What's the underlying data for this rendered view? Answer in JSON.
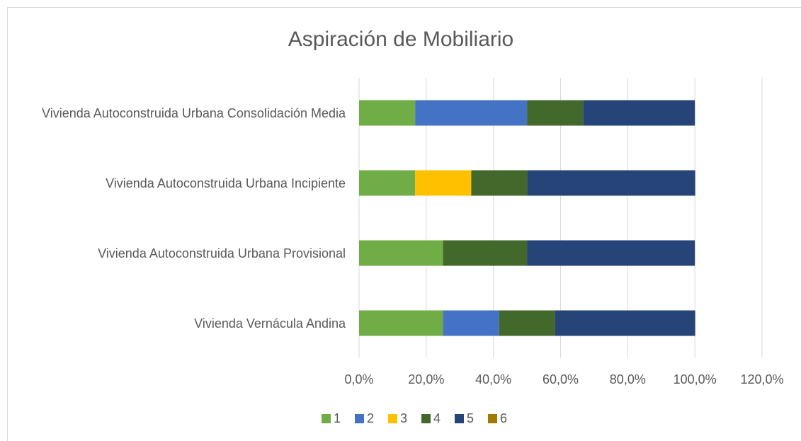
{
  "chart_data": {
    "type": "bar",
    "orientation": "horizontal",
    "stacked": true,
    "title": "Aspiración de Mobiliario",
    "categories": [
      "Vivienda Autoconstruida Urbana Consolidación Media",
      "Vivienda Autoconstruida Urbana Incipiente",
      "Vivienda Autoconstruida Urbana Provisional",
      "Vivienda Vernácula Andina"
    ],
    "series": [
      {
        "name": "1",
        "color": "#70ad47",
        "values": [
          16.7,
          16.7,
          25,
          25
        ]
      },
      {
        "name": "2",
        "color": "#4472c4",
        "values": [
          33.3,
          0,
          0,
          16.7
        ]
      },
      {
        "name": "3",
        "color": "#ffc000",
        "values": [
          0,
          16.7,
          0,
          0
        ]
      },
      {
        "name": "4",
        "color": "#43682b",
        "values": [
          16.7,
          16.7,
          25,
          16.7
        ]
      },
      {
        "name": "5",
        "color": "#264478",
        "values": [
          33.3,
          50,
          50,
          41.7
        ]
      },
      {
        "name": "6",
        "color": "#9e7a00",
        "values": [
          0,
          0,
          0,
          0
        ]
      }
    ],
    "xlim": [
      0,
      120
    ],
    "xticks": [
      {
        "value": 0,
        "label": "0,0%"
      },
      {
        "value": 20,
        "label": "20,0%"
      },
      {
        "value": 40,
        "label": "40,0%"
      },
      {
        "value": 60,
        "label": "60,0%"
      },
      {
        "value": 80,
        "label": "80,0%"
      },
      {
        "value": 100,
        "label": "100,0%"
      },
      {
        "value": 120,
        "label": "120,0%"
      }
    ],
    "grid": true,
    "legend": "bottom"
  }
}
